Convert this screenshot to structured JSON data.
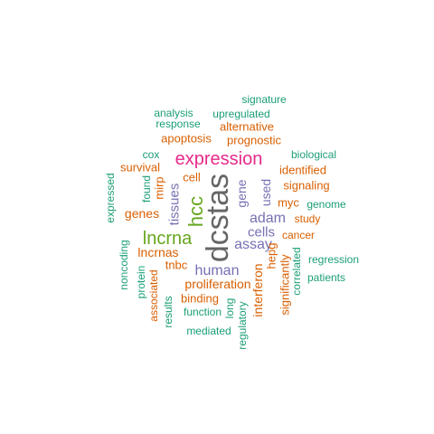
{
  "colors": {
    "teal": "#1b9e77",
    "orange": "#d95f02",
    "purple": "#7570b3",
    "magenta": "#e7298a",
    "green": "#66a61e",
    "gray": "#666666"
  },
  "words": [
    {
      "text": "dcstas",
      "color": "gray",
      "vertical": true
    },
    {
      "text": "expression",
      "color": "magenta",
      "vertical": false
    },
    {
      "text": "lncrna",
      "color": "green",
      "vertical": false
    },
    {
      "text": "hcc",
      "color": "green",
      "vertical": true
    },
    {
      "text": "human",
      "color": "purple",
      "vertical": false
    },
    {
      "text": "assay",
      "color": "purple",
      "vertical": false
    },
    {
      "text": "adam",
      "color": "purple",
      "vertical": false
    },
    {
      "text": "cells",
      "color": "purple",
      "vertical": false
    },
    {
      "text": "tissues",
      "color": "purple",
      "vertical": true
    },
    {
      "text": "gene",
      "color": "purple",
      "vertical": true
    },
    {
      "text": "used",
      "color": "purple",
      "vertical": true
    },
    {
      "text": "proliferation",
      "color": "orange",
      "vertical": false
    },
    {
      "text": "lncrnas",
      "color": "orange",
      "vertical": false
    },
    {
      "text": "genes",
      "color": "orange",
      "vertical": false
    },
    {
      "text": "apoptosis",
      "color": "orange",
      "vertical": false
    },
    {
      "text": "prognostic",
      "color": "orange",
      "vertical": false
    },
    {
      "text": "interferon",
      "color": "orange",
      "vertical": true
    },
    {
      "text": "cell",
      "color": "orange",
      "vertical": false
    },
    {
      "text": "binding",
      "color": "orange",
      "vertical": false
    },
    {
      "text": "mirp",
      "color": "orange",
      "vertical": true
    },
    {
      "text": "myc",
      "color": "orange",
      "vertical": false
    },
    {
      "text": "identified",
      "color": "orange",
      "vertical": false
    },
    {
      "text": "signaling",
      "color": "orange",
      "vertical": false
    },
    {
      "text": "tnbc",
      "color": "orange",
      "vertical": false
    },
    {
      "text": "survival",
      "color": "orange",
      "vertical": false
    },
    {
      "text": "alternative",
      "color": "orange",
      "vertical": false
    },
    {
      "text": "study",
      "color": "orange",
      "vertical": false
    },
    {
      "text": "cancer",
      "color": "orange",
      "vertical": false
    },
    {
      "text": "hepg",
      "color": "orange",
      "vertical": true
    },
    {
      "text": "significantly",
      "color": "orange",
      "vertical": true
    },
    {
      "text": "associated",
      "color": "orange",
      "vertical": true
    },
    {
      "text": "signature",
      "color": "teal",
      "vertical": false
    },
    {
      "text": "analysis",
      "color": "teal",
      "vertical": false
    },
    {
      "text": "upregulated",
      "color": "teal",
      "vertical": false
    },
    {
      "text": "response",
      "color": "teal",
      "vertical": false
    },
    {
      "text": "biological",
      "color": "teal",
      "vertical": false
    },
    {
      "text": "cox",
      "color": "teal",
      "vertical": false
    },
    {
      "text": "expressed",
      "color": "teal",
      "vertical": true
    },
    {
      "text": "found",
      "color": "teal",
      "vertical": true
    },
    {
      "text": "genome",
      "color": "teal",
      "vertical": false
    },
    {
      "text": "regression",
      "color": "teal",
      "vertical": false
    },
    {
      "text": "patients",
      "color": "teal",
      "vertical": false
    },
    {
      "text": "correlated",
      "color": "teal",
      "vertical": true
    },
    {
      "text": "noncoding",
      "color": "teal",
      "vertical": true
    },
    {
      "text": "protein",
      "color": "teal",
      "vertical": true
    },
    {
      "text": "results",
      "color": "teal",
      "vertical": true
    },
    {
      "text": "function",
      "color": "teal",
      "vertical": false
    },
    {
      "text": "long",
      "color": "teal",
      "vertical": true
    },
    {
      "text": "mediated",
      "color": "teal",
      "vertical": false
    },
    {
      "text": "regulatory",
      "color": "teal",
      "vertical": true
    }
  ]
}
